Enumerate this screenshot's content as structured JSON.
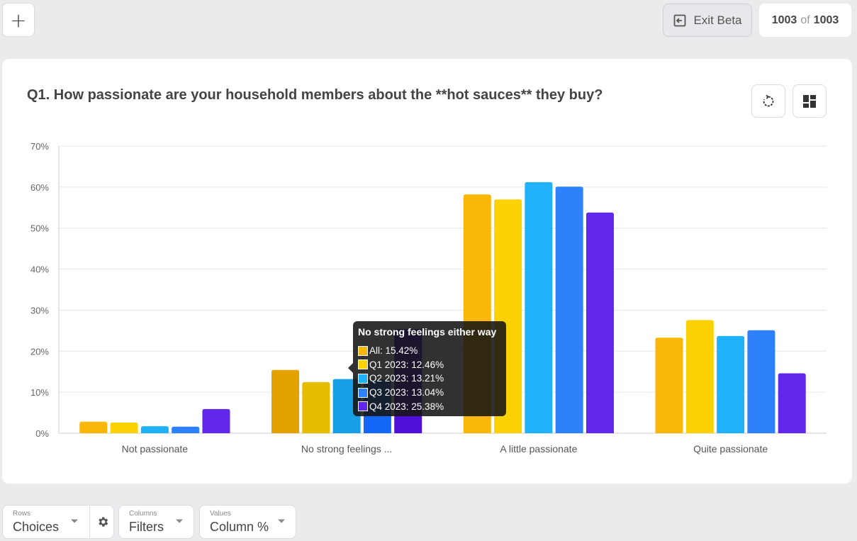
{
  "toolbar": {
    "add_label": "+",
    "exit_beta_label": "Exit Beta",
    "count_current": "1003",
    "count_of": "of",
    "count_total": "1003"
  },
  "card": {
    "title": "Q1. How passionate are your household members about the **hot sauces** they buy?"
  },
  "colors": {
    "All": "#fbb707",
    "Q1 2023": "#fdd204",
    "Q2 2023": "#1fb2fb",
    "Q3 2023": "#2f80fb",
    "Q4 2023": "#6127ea",
    "grid": "#e6e6e6",
    "axis_text": "#666666"
  },
  "chart_data": {
    "type": "bar",
    "categories": [
      "Not passionate",
      "No strong feelings ...",
      "A little passionate",
      "Quite passionate"
    ],
    "series": [
      {
        "name": "All",
        "values": [
          2.8,
          15.42,
          58.2,
          23.3
        ]
      },
      {
        "name": "Q1 2023",
        "values": [
          2.6,
          12.46,
          57.0,
          27.6
        ]
      },
      {
        "name": "Q2 2023",
        "values": [
          1.7,
          13.21,
          61.2,
          23.7
        ]
      },
      {
        "name": "Q3 2023",
        "values": [
          1.6,
          13.04,
          60.1,
          25.1
        ]
      },
      {
        "name": "Q4 2023",
        "values": [
          5.9,
          25.38,
          53.8,
          14.6
        ]
      }
    ],
    "yticks": [
      "0%",
      "10%",
      "20%",
      "30%",
      "40%",
      "50%",
      "60%",
      "70%"
    ],
    "ylim": [
      0,
      70
    ],
    "grid": true,
    "highlighted_category_index": 1
  },
  "tooltip": {
    "title": "No strong feelings either way",
    "rows": [
      {
        "text": "All: 15.42%",
        "color": "#fbb707"
      },
      {
        "text": "Q1 2023: 12.46%",
        "color": "#fdd204"
      },
      {
        "text": "Q2 2023: 13.21%",
        "color": "#1fb2fb"
      },
      {
        "text": "Q3 2023: 13.04%",
        "color": "#2f80fb"
      },
      {
        "text": "Q4 2023: 25.38%",
        "color": "#6127ea"
      }
    ]
  },
  "controls": {
    "rows": {
      "caption": "Rows",
      "value": "Choices"
    },
    "columns": {
      "caption": "Columns",
      "value": "Filters"
    },
    "values": {
      "caption": "Values",
      "value": "Column %"
    }
  }
}
